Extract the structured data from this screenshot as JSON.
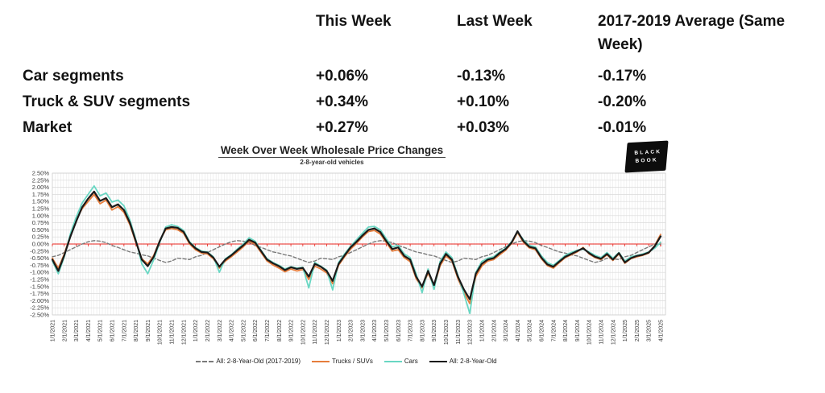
{
  "table": {
    "headers": [
      "",
      "This Week",
      "Last Week",
      "2017-2019 Average (Same Week)"
    ],
    "rows": [
      {
        "label": "Car segments",
        "this_week": "+0.06%",
        "last_week": "-0.13%",
        "avg": "-0.17%"
      },
      {
        "label": "Truck & SUV segments",
        "this_week": "+0.34%",
        "last_week": "+0.10%",
        "avg": "-0.20%"
      },
      {
        "label": "Market",
        "this_week": "+0.27%",
        "last_week": "+0.03%",
        "avg": "-0.01%"
      }
    ]
  },
  "logo": {
    "line1": "BLACK",
    "line2": "BOOK"
  },
  "chart_data": {
    "type": "line",
    "title": "Week Over Week Wholesale Price Changes",
    "subtitle": "2-8-year-old vehicles",
    "ylim": [
      -2.5,
      2.5
    ],
    "ytick_step": 0.25,
    "grid": true,
    "legend_position": "bottom",
    "zero_line_color": "#E8261F",
    "x_step_months": 0.5,
    "y_tick_labels": [
      "2.50%",
      "2.25%",
      "2.00%",
      "1.75%",
      "1.50%",
      "1.25%",
      "1.00%",
      "0.75%",
      "0.50%",
      "0.25%",
      "0.00%",
      "-0.25%",
      "-0.50%",
      "-0.75%",
      "-1.00%",
      "-1.25%",
      "-1.50%",
      "-1.75%",
      "-2.00%",
      "-2.25%",
      "-2.50%"
    ],
    "x_tick_labels": [
      "1/1/2021",
      "2/1/2021",
      "3/1/2021",
      "4/1/2021",
      "5/1/2021",
      "6/1/2021",
      "7/1/2021",
      "8/1/2021",
      "9/1/2021",
      "10/1/2021",
      "11/1/2021",
      "12/1/2021",
      "1/1/2022",
      "2/1/2022",
      "3/1/2022",
      "4/1/2022",
      "5/1/2022",
      "6/1/2022",
      "7/1/2022",
      "8/1/2022",
      "9/1/2022",
      "10/1/2022",
      "11/1/2022",
      "12/1/2022",
      "1/1/2023",
      "2/1/2023",
      "3/1/2023",
      "4/1/2023",
      "5/1/2023",
      "6/1/2023",
      "7/1/2023",
      "8/1/2023",
      "9/1/2023",
      "10/1/2023",
      "11/1/2023",
      "12/1/2023",
      "1/1/2024",
      "2/1/2024",
      "3/1/2024",
      "4/1/2024",
      "5/1/2024",
      "6/1/2024",
      "7/1/2024",
      "8/1/2024",
      "9/1/2024",
      "10/1/2024",
      "11/1/2024",
      "12/1/2024",
      "1/1/2025",
      "2/1/2025",
      "3/1/2025",
      "4/1/2025"
    ],
    "series": [
      {
        "id": "avg-2017-2019",
        "name": "All: 2-8-Year-Old (2017-2019)",
        "color": "#7A7A7A",
        "dash": true,
        "values": [
          -0.45,
          -0.4,
          -0.3,
          -0.2,
          -0.1,
          0.0,
          0.08,
          0.12,
          0.1,
          0.05,
          -0.05,
          -0.12,
          -0.2,
          -0.28,
          -0.32,
          -0.38,
          -0.42,
          -0.5,
          -0.58,
          -0.65,
          -0.6,
          -0.5,
          -0.52,
          -0.55,
          -0.45,
          -0.4,
          -0.3,
          -0.2,
          -0.1,
          0.0,
          0.08,
          0.12,
          0.1,
          0.05,
          -0.05,
          -0.12,
          -0.2,
          -0.28,
          -0.32,
          -0.38,
          -0.42,
          -0.5,
          -0.58,
          -0.65,
          -0.6,
          -0.5,
          -0.52,
          -0.55,
          -0.45,
          -0.4,
          -0.3,
          -0.2,
          -0.1,
          0.0,
          0.08,
          0.12,
          0.1,
          0.05,
          -0.05,
          -0.12,
          -0.2,
          -0.28,
          -0.32,
          -0.38,
          -0.42,
          -0.5,
          -0.58,
          -0.65,
          -0.6,
          -0.5,
          -0.52,
          -0.55,
          -0.45,
          -0.4,
          -0.3,
          -0.2,
          -0.1,
          0.0,
          0.08,
          0.12,
          0.1,
          0.05,
          -0.05,
          -0.12,
          -0.2,
          -0.28,
          -0.32,
          -0.38,
          -0.42,
          -0.5,
          -0.58,
          -0.65,
          -0.6,
          -0.5,
          -0.52,
          -0.55,
          -0.45,
          -0.4,
          -0.3,
          -0.2,
          -0.1,
          0.0,
          -0.01
        ]
      },
      {
        "id": "trucks-suvs",
        "name": "Trucks / SUVs",
        "color": "#E67D3C",
        "dash": false,
        "values": [
          -0.5,
          -0.85,
          -0.35,
          0.3,
          0.85,
          1.25,
          1.5,
          1.75,
          1.42,
          1.55,
          1.2,
          1.32,
          1.12,
          0.68,
          0.05,
          -0.52,
          -0.7,
          -0.4,
          0.12,
          0.5,
          0.55,
          0.5,
          0.38,
          0.0,
          -0.2,
          -0.32,
          -0.35,
          -0.52,
          -0.85,
          -0.6,
          -0.45,
          -0.28,
          -0.1,
          0.1,
          0.0,
          -0.3,
          -0.6,
          -0.74,
          -0.85,
          -0.98,
          -0.88,
          -0.95,
          -0.9,
          -1.25,
          -0.78,
          -0.88,
          -1.02,
          -1.4,
          -0.75,
          -0.45,
          -0.18,
          0.02,
          0.25,
          0.44,
          0.48,
          0.35,
          0.05,
          -0.25,
          -0.2,
          -0.48,
          -0.62,
          -1.22,
          -1.55,
          -1.02,
          -1.5,
          -0.78,
          -0.42,
          -0.6,
          -1.22,
          -1.7,
          -2.1,
          -1.15,
          -0.78,
          -0.6,
          -0.55,
          -0.38,
          -0.22,
          0.02,
          0.4,
          0.06,
          -0.14,
          -0.2,
          -0.52,
          -0.76,
          -0.85,
          -0.66,
          -0.48,
          -0.38,
          -0.28,
          -0.12,
          -0.35,
          -0.48,
          -0.55,
          -0.38,
          -0.58,
          -0.35,
          -0.68,
          -0.52,
          -0.45,
          -0.4,
          -0.32,
          -0.05,
          0.34
        ]
      },
      {
        "id": "cars",
        "name": "Cars",
        "color": "#69D7C3",
        "dash": false,
        "values": [
          -0.6,
          -1.05,
          -0.45,
          0.35,
          0.95,
          1.45,
          1.75,
          2.05,
          1.7,
          1.8,
          1.48,
          1.55,
          1.35,
          0.85,
          0.15,
          -0.7,
          -1.05,
          -0.55,
          0.05,
          0.6,
          0.68,
          0.62,
          0.48,
          0.08,
          -0.12,
          -0.25,
          -0.28,
          -0.45,
          -1.0,
          -0.52,
          -0.38,
          -0.18,
          0.0,
          0.22,
          0.1,
          -0.22,
          -0.52,
          -0.65,
          -0.75,
          -0.88,
          -0.8,
          -0.85,
          -0.82,
          -1.55,
          -0.65,
          -0.78,
          -0.92,
          -1.62,
          -0.65,
          -0.35,
          -0.08,
          0.15,
          0.38,
          0.6,
          0.62,
          0.5,
          0.18,
          -0.1,
          -0.05,
          -0.35,
          -0.48,
          -1.05,
          -1.72,
          -0.88,
          -1.6,
          -0.62,
          -0.28,
          -0.48,
          -1.1,
          -1.75,
          -2.45,
          -1.0,
          -0.62,
          -0.5,
          -0.45,
          -0.28,
          -0.15,
          0.08,
          0.42,
          0.15,
          -0.05,
          -0.1,
          -0.42,
          -0.65,
          -0.75,
          -0.58,
          -0.4,
          -0.3,
          -0.22,
          -0.18,
          -0.28,
          -0.4,
          -0.48,
          -0.3,
          -0.5,
          -0.3,
          -0.6,
          -0.45,
          -0.4,
          -0.35,
          -0.28,
          -0.15,
          0.06
        ]
      },
      {
        "id": "all-2-8",
        "name": "All: 2-8-Year-Old",
        "color": "#1A1A1A",
        "dash": false,
        "values": [
          -0.55,
          -0.95,
          -0.4,
          0.25,
          0.8,
          1.3,
          1.6,
          1.85,
          1.52,
          1.62,
          1.3,
          1.4,
          1.2,
          0.75,
          0.1,
          -0.55,
          -0.78,
          -0.45,
          0.1,
          0.55,
          0.6,
          0.57,
          0.43,
          0.05,
          -0.15,
          -0.28,
          -0.3,
          -0.48,
          -0.8,
          -0.55,
          -0.4,
          -0.22,
          -0.05,
          0.15,
          0.05,
          -0.25,
          -0.55,
          -0.68,
          -0.78,
          -0.92,
          -0.82,
          -0.88,
          -0.84,
          -1.15,
          -0.7,
          -0.8,
          -0.95,
          -1.3,
          -0.7,
          -0.4,
          -0.12,
          0.08,
          0.3,
          0.5,
          0.55,
          0.42,
          0.1,
          -0.18,
          -0.12,
          -0.42,
          -0.55,
          -1.15,
          -1.5,
          -0.95,
          -1.45,
          -0.7,
          -0.35,
          -0.55,
          -1.15,
          -1.6,
          -1.95,
          -1.05,
          -0.7,
          -0.55,
          -0.5,
          -0.32,
          -0.18,
          0.05,
          0.45,
          0.1,
          -0.1,
          -0.15,
          -0.48,
          -0.72,
          -0.8,
          -0.62,
          -0.45,
          -0.35,
          -0.25,
          -0.15,
          -0.32,
          -0.45,
          -0.52,
          -0.35,
          -0.55,
          -0.32,
          -0.65,
          -0.5,
          -0.42,
          -0.38,
          -0.3,
          -0.08,
          0.27
        ]
      }
    ]
  }
}
